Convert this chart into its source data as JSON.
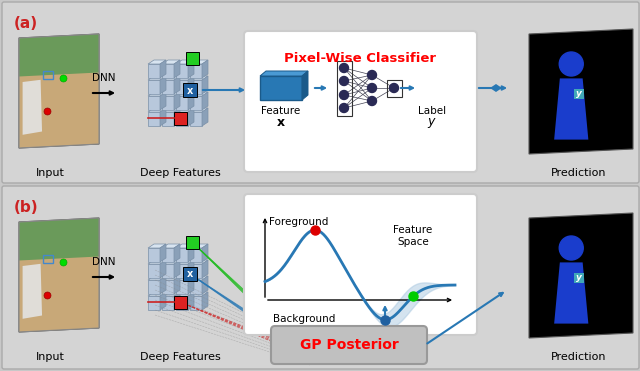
{
  "bg_color": "#c8c8c8",
  "panel_color": "#d4d4d4",
  "white_box_color": "#ffffff",
  "teal_color": "#2878b4",
  "dark_teal": "#1a5a8a",
  "title_a": "Pixel-Wise Classifier",
  "title_b": "GP Posterior",
  "label_a": "(a)",
  "label_b": "(b)",
  "green_dot_color": "#00cc00",
  "red_dot_color": "#cc0000",
  "red_box_color": "#dd2222",
  "green_box_color": "#22cc22",
  "blue_feature_color": "#2878b4",
  "arrow_color": "#2878b4",
  "text_color": "#000000",
  "gp_curve_color": "#2878b4",
  "gp_fill_color": "#aac8e0",
  "block_face": "#b8c8dc",
  "block_top": "#d8e4f0",
  "block_side": "#8aa0b8"
}
